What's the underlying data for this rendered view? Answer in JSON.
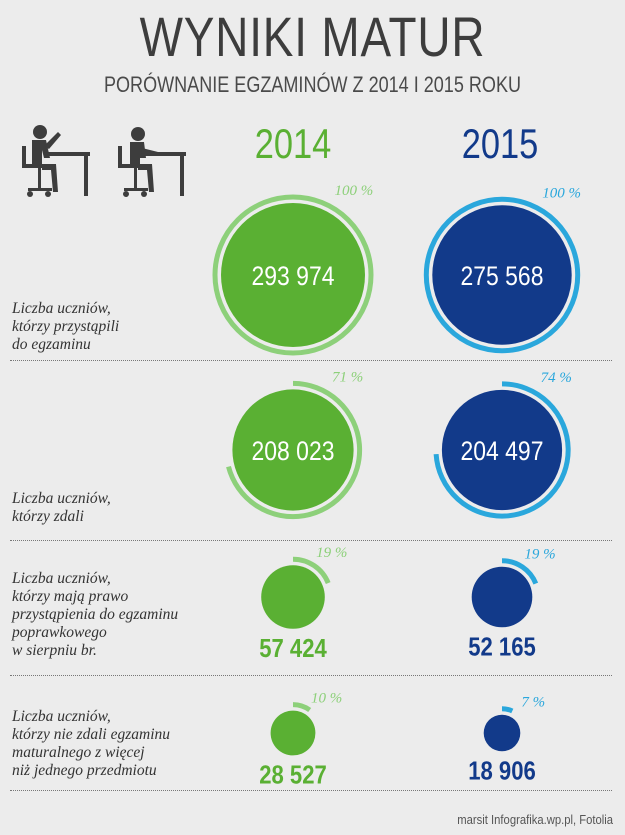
{
  "header": {
    "title": "WYNIKI MATUR",
    "subtitle": "PORÓWNANIE EGZAMINÓW Z 2014 I 2015 ROKU"
  },
  "source": "marsit Infografika.wp.pl, Fotolia",
  "colors": {
    "green": "#5ab033",
    "green_light": "#8dd07a",
    "blue": "#123a8a",
    "blue_light": "#2aa7dc",
    "text": "#3d3d3d"
  },
  "icons": [
    "student-at-desk-icon",
    "student-at-desk-icon"
  ],
  "chart_data": {
    "type": "bubble",
    "categories": [
      "2014",
      "2015"
    ],
    "rows": [
      {
        "label": "Liczba uczniów, którzy przystąpili do egzaminu",
        "label_lines": [
          "Liczba uczniów,",
          "którzy przystąpili",
          "do egzaminu"
        ],
        "values": [
          293974,
          275568
        ],
        "display": [
          "293 974",
          "275 568"
        ],
        "percent": [
          100,
          100
        ],
        "percent_display": [
          "100 %",
          "100 %"
        ]
      },
      {
        "label": "Liczba uczniów, którzy zdali",
        "label_lines": [
          "Liczba uczniów,",
          "którzy zdali"
        ],
        "values": [
          208023,
          204497
        ],
        "display": [
          "208 023",
          "204 497"
        ],
        "percent": [
          71,
          74
        ],
        "percent_display": [
          "71 %",
          "74 %"
        ]
      },
      {
        "label": "Liczba uczniów, którzy mają prawo przystąpienia do egzaminu poprawkowego w sierpniu br.",
        "label_lines": [
          "Liczba uczniów,",
          "którzy mają prawo",
          "przystąpienia do egzaminu",
          "poprawkowego",
          "w sierpniu br."
        ],
        "values": [
          57424,
          52165
        ],
        "display": [
          "57 424",
          "52 165"
        ],
        "percent": [
          19,
          19
        ],
        "percent_display": [
          "19 %",
          "19 %"
        ]
      },
      {
        "label": "Liczba uczniów, którzy nie zdali egzaminu maturalnego z więcej niż jednego przedmiotu",
        "label_lines": [
          "Liczba uczniów,",
          "którzy nie zdali egzaminu",
          "maturalnego z więcej",
          "niż jednego przedmiotu"
        ],
        "values": [
          28527,
          18906
        ],
        "display": [
          "28 527",
          "18 906"
        ],
        "percent": [
          10,
          7
        ],
        "percent_display": [
          "10 %",
          "7 %"
        ]
      }
    ]
  }
}
